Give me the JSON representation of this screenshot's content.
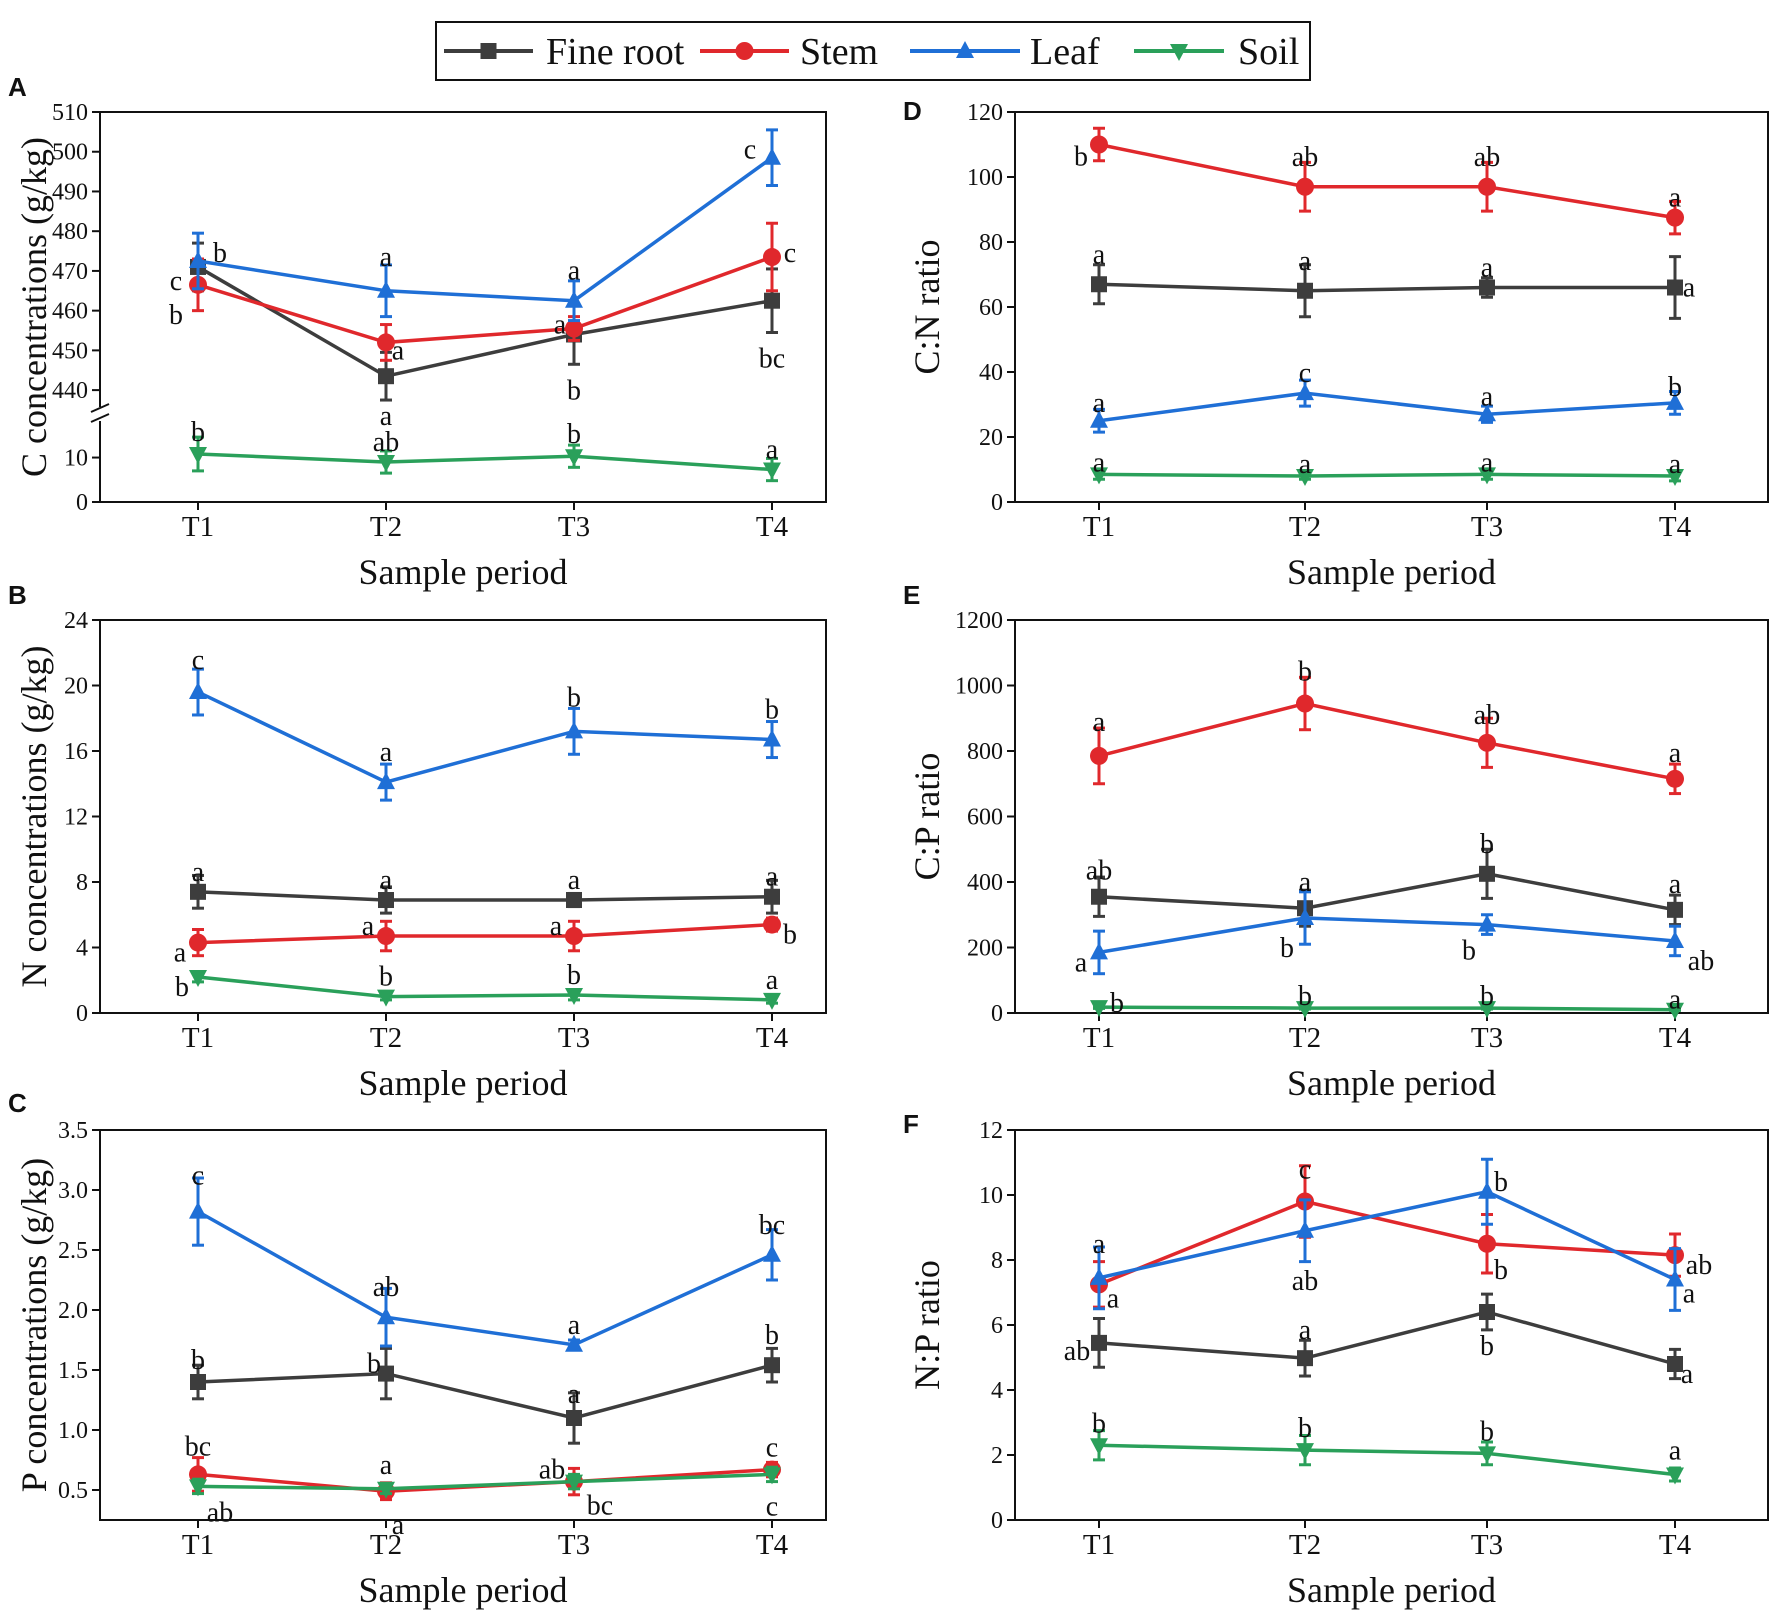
{
  "colors": {
    "Fine root": "#3d3d3d",
    "Stem": "#e0282c",
    "Leaf": "#1f6fd6",
    "Soil": "#2aa05a"
  },
  "legend": [
    {
      "name": "Fine root",
      "marker": "square"
    },
    {
      "name": "Stem",
      "marker": "circle"
    },
    {
      "name": "Leaf",
      "marker": "triangle-up"
    },
    {
      "name": "Soil",
      "marker": "triangle-down"
    }
  ],
  "chart_data": [
    {
      "id": "A",
      "type": "line",
      "panel_letter": "A",
      "xlabel": "Sample period",
      "ylabel": "C concentrations (g/kg)",
      "categories": [
        "T1",
        "T2",
        "T3",
        "T4"
      ],
      "axis_break": {
        "lower": [
          0,
          18
        ],
        "upper": [
          436,
          510
        ]
      },
      "ticks": [
        0,
        10,
        440,
        450,
        460,
        470,
        480,
        490,
        500,
        510
      ],
      "series": [
        {
          "name": "Fine root",
          "values": [
            471,
            443.5,
            454,
            462.5
          ],
          "errors": [
            6,
            6,
            7.5,
            8
          ],
          "labels": [
            "c",
            "a",
            "b",
            "bc"
          ]
        },
        {
          "name": "Stem",
          "values": [
            466.5,
            452,
            455.5,
            473.5
          ],
          "errors": [
            6.5,
            4.5,
            3,
            8.5
          ],
          "labels": [
            "b",
            "a",
            "a",
            "c"
          ]
        },
        {
          "name": "Leaf",
          "values": [
            472.5,
            465,
            462.5,
            498.5
          ],
          "errors": [
            7,
            6.5,
            5,
            7
          ],
          "labels": [
            "b",
            "a",
            "a",
            "c"
          ]
        },
        {
          "name": "Soil",
          "values": [
            10.8,
            9,
            10.3,
            7.3
          ],
          "errors": [
            3.8,
            2.5,
            2.5,
            2.5
          ],
          "labels": [
            "b",
            "ab",
            "b",
            "a"
          ]
        }
      ]
    },
    {
      "id": "B",
      "type": "line",
      "panel_letter": "B",
      "xlabel": "Sample period",
      "ylabel": "N concentrations (g/kg)",
      "categories": [
        "T1",
        "T2",
        "T3",
        "T4"
      ],
      "ylim": [
        0,
        24
      ],
      "ticks": [
        0,
        4,
        8,
        12,
        16,
        20,
        24
      ],
      "series": [
        {
          "name": "Fine root",
          "values": [
            7.4,
            6.9,
            6.9,
            7.1
          ],
          "errors": [
            1.0,
            0.8,
            0.4,
            1.0
          ],
          "labels": [
            "a",
            "a",
            "a",
            "a"
          ]
        },
        {
          "name": "Stem",
          "values": [
            4.3,
            4.7,
            4.7,
            5.4
          ],
          "errors": [
            0.8,
            0.9,
            0.9,
            0.4
          ],
          "labels": [
            "a",
            "a",
            "a",
            "b"
          ]
        },
        {
          "name": "Leaf",
          "values": [
            19.6,
            14.1,
            17.2,
            16.7
          ],
          "errors": [
            1.4,
            1.1,
            1.4,
            1.1
          ],
          "labels": [
            "c",
            "a",
            "b",
            "b"
          ]
        },
        {
          "name": "Soil",
          "values": [
            2.2,
            1.0,
            1.1,
            0.8
          ],
          "errors": [
            0.3,
            0.2,
            0.3,
            0.2
          ],
          "labels": [
            "b",
            "b",
            "b",
            "a"
          ]
        }
      ]
    },
    {
      "id": "C",
      "type": "line",
      "panel_letter": "C",
      "xlabel": "Sample period",
      "ylabel": "P concentrations (g/kg)",
      "categories": [
        "T1",
        "T2",
        "T3",
        "T4"
      ],
      "ylim": [
        0.25,
        3.5
      ],
      "ticks": [
        0.5,
        1.0,
        1.5,
        2.0,
        2.5,
        3.0,
        3.5
      ],
      "tick_labels": [
        "0.5",
        "1.0",
        "1.5",
        "2.0",
        "2.5",
        "3.0",
        "3.5"
      ],
      "series": [
        {
          "name": "Fine root",
          "values": [
            1.4,
            1.47,
            1.1,
            1.54
          ],
          "errors": [
            0.14,
            0.21,
            0.21,
            0.14
          ],
          "labels": [
            "b",
            "b",
            "a",
            "b"
          ]
        },
        {
          "name": "Stem",
          "values": [
            0.63,
            0.49,
            0.57,
            0.67
          ],
          "errors": [
            0.14,
            0.07,
            0.11,
            0.06
          ],
          "labels": [
            "bc",
            "a",
            "ab",
            "c"
          ]
        },
        {
          "name": "Leaf",
          "values": [
            2.82,
            1.94,
            1.71,
            2.46
          ],
          "errors": [
            0.28,
            0.24,
            0.04,
            0.21
          ],
          "labels": [
            "c",
            "ab",
            "a",
            "bc"
          ]
        },
        {
          "name": "Soil",
          "values": [
            0.53,
            0.51,
            0.57,
            0.63
          ],
          "errors": [
            0.06,
            0.04,
            0.06,
            0.06
          ],
          "labels": [
            "ab",
            "a",
            "bc",
            "c"
          ]
        }
      ]
    },
    {
      "id": "D",
      "type": "line",
      "panel_letter": "D",
      "xlabel": "Sample period",
      "ylabel": "C:N ratio",
      "categories": [
        "T1",
        "T2",
        "T3",
        "T4"
      ],
      "ylim": [
        0,
        120
      ],
      "ticks": [
        0,
        20,
        40,
        60,
        80,
        100,
        120
      ],
      "series": [
        {
          "name": "Fine root",
          "values": [
            67,
            65,
            66,
            66
          ],
          "errors": [
            6,
            8,
            3,
            9.5
          ],
          "labels": [
            "a",
            "a",
            "a",
            "a"
          ]
        },
        {
          "name": "Stem",
          "values": [
            110,
            97,
            97,
            87.5
          ],
          "errors": [
            5,
            7.5,
            7.5,
            5
          ],
          "labels": [
            "b",
            "ab",
            "ab",
            "a"
          ]
        },
        {
          "name": "Leaf",
          "values": [
            25,
            33.5,
            27,
            30.5
          ],
          "errors": [
            3.5,
            4,
            2.5,
            3.5
          ],
          "labels": [
            "a",
            "c",
            "a",
            "b"
          ]
        },
        {
          "name": "Soil",
          "values": [
            8.5,
            8,
            8.5,
            8
          ],
          "errors": [
            1.5,
            1,
            1.5,
            1.5
          ],
          "labels": [
            "a",
            "a",
            "a",
            "a"
          ]
        }
      ]
    },
    {
      "id": "E",
      "type": "line",
      "panel_letter": "E",
      "xlabel": "Sample period",
      "ylabel": "C:P ratio",
      "categories": [
        "T1",
        "T2",
        "T3",
        "T4"
      ],
      "ylim": [
        0,
        1200
      ],
      "ticks": [
        0,
        200,
        400,
        600,
        800,
        1000,
        1200
      ],
      "series": [
        {
          "name": "Fine root",
          "values": [
            355,
            320,
            425,
            315
          ],
          "errors": [
            60,
            55,
            75,
            45
          ],
          "labels": [
            "ab",
            "a",
            "b",
            "a"
          ]
        },
        {
          "name": "Stem",
          "values": [
            785,
            945,
            825,
            715
          ],
          "errors": [
            85,
            80,
            75,
            45
          ],
          "labels": [
            "a",
            "b",
            "ab",
            "a"
          ]
        },
        {
          "name": "Leaf",
          "values": [
            185,
            290,
            270,
            220
          ],
          "errors": [
            65,
            80,
            30,
            45
          ],
          "labels": [
            "a",
            "b",
            "b",
            "ab"
          ]
        },
        {
          "name": "Soil",
          "values": [
            18,
            15,
            15,
            10
          ],
          "errors": [
            4,
            3,
            3,
            2
          ],
          "labels": [
            "b",
            "b",
            "b",
            "a"
          ]
        }
      ]
    },
    {
      "id": "F",
      "type": "line",
      "panel_letter": "F",
      "xlabel": "Sample period",
      "ylabel": "N:P ratio",
      "categories": [
        "T1",
        "T2",
        "T3",
        "T4"
      ],
      "ylim": [
        0,
        12
      ],
      "ticks": [
        0,
        2,
        4,
        6,
        8,
        10,
        12
      ],
      "series": [
        {
          "name": "Fine root",
          "values": [
            5.45,
            4.98,
            6.4,
            4.8
          ],
          "errors": [
            0.75,
            0.55,
            0.55,
            0.45
          ],
          "labels": [
            "ab",
            "a",
            "b",
            "a"
          ]
        },
        {
          "name": "Stem",
          "values": [
            7.25,
            9.8,
            8.5,
            8.15
          ],
          "errors": [
            0.7,
            1.1,
            0.9,
            0.65
          ],
          "labels": [
            "a",
            "c",
            "b",
            "ab"
          ]
        },
        {
          "name": "Leaf",
          "values": [
            7.45,
            8.9,
            10.1,
            7.4
          ],
          "errors": [
            0.95,
            0.95,
            1.0,
            0.95
          ],
          "labels": [
            "a",
            "ab",
            "b",
            "a"
          ]
        },
        {
          "name": "Soil",
          "values": [
            2.3,
            2.15,
            2.05,
            1.4
          ],
          "errors": [
            0.45,
            0.45,
            0.35,
            0.2
          ],
          "labels": [
            "b",
            "b",
            "b",
            "a"
          ]
        }
      ]
    }
  ]
}
